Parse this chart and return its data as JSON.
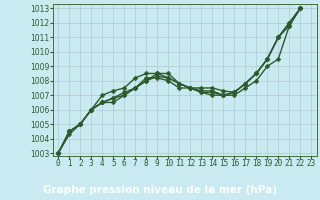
{
  "title": "Graphe pression niveau de la mer (hPa)",
  "bg_color": "#c8eaf0",
  "plot_bg_color": "#c8eaf0",
  "label_bg_color": "#2d6a2d",
  "label_text_color": "#ffffff",
  "grid_color": "#b0c8d0",
  "line_color": "#2d5a2d",
  "spine_color": "#2d5a2d",
  "xlim": [
    -0.5,
    23.5
  ],
  "ylim": [
    1002.8,
    1013.3
  ],
  "yticks": [
    1003,
    1004,
    1005,
    1006,
    1007,
    1008,
    1009,
    1010,
    1011,
    1012,
    1013
  ],
  "xticks": [
    0,
    1,
    2,
    3,
    4,
    5,
    6,
    7,
    8,
    9,
    10,
    11,
    12,
    13,
    14,
    15,
    16,
    17,
    18,
    19,
    20,
    21,
    22,
    23
  ],
  "series": [
    [
      1003.0,
      1004.5,
      1005.0,
      1006.0,
      1007.0,
      1007.3,
      1007.5,
      1008.2,
      1008.5,
      1008.5,
      1008.2,
      1007.8,
      1007.5,
      1007.5,
      1007.5,
      1007.3,
      1007.2,
      1007.8,
      1008.5,
      1009.5,
      1011.0,
      1011.8,
      1013.0,
      null
    ],
    [
      1003.0,
      1004.5,
      1005.0,
      1006.0,
      1006.5,
      1006.8,
      1007.2,
      1007.5,
      1008.0,
      1008.3,
      1008.2,
      1007.8,
      1007.5,
      1007.3,
      1007.3,
      1007.0,
      1007.0,
      1007.5,
      1008.0,
      1009.0,
      1009.5,
      1011.8,
      1013.0,
      null
    ],
    [
      1003.0,
      1004.5,
      1005.0,
      1006.0,
      1006.5,
      1006.8,
      1007.0,
      1007.5,
      1008.2,
      1008.2,
      1008.0,
      1007.5,
      1007.5,
      1007.2,
      1007.2,
      1007.0,
      1007.2,
      1007.8,
      1008.5,
      1009.5,
      1011.0,
      1012.0,
      1013.0,
      null
    ],
    [
      1003.0,
      1004.3,
      1005.0,
      1006.0,
      1006.5,
      1006.5,
      1007.0,
      1007.5,
      1008.0,
      1008.5,
      1008.5,
      1007.8,
      1007.5,
      1007.2,
      1007.0,
      1007.0,
      1007.2,
      1007.8,
      1008.5,
      1009.5,
      1011.0,
      1012.0,
      1013.0,
      null
    ]
  ],
  "marker": "D",
  "markersize": 2.5,
  "linewidth": 1.0,
  "tick_fontsize": 5.5,
  "title_fontsize": 7.5,
  "title_fontweight": "bold"
}
